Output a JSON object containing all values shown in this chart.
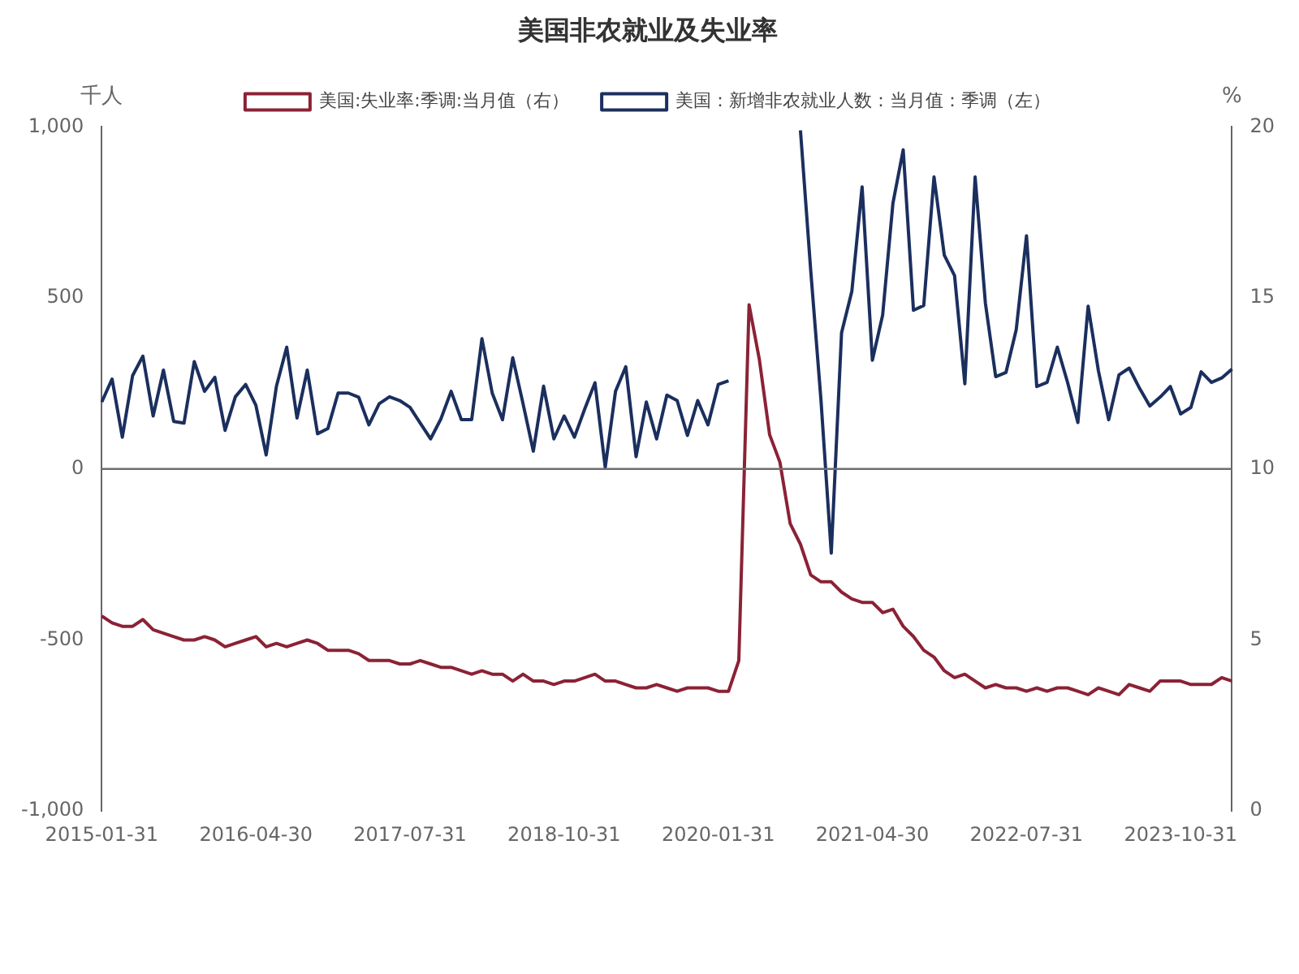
{
  "chart_data": {
    "type": "line",
    "title": "美国非农就业及失业率",
    "ylabel": "千人",
    "y2label": "%",
    "categories": [
      "2015-01-31",
      null,
      null,
      null,
      null,
      null,
      null,
      null,
      null,
      null,
      null,
      null,
      null,
      null,
      null,
      "2016-04-30",
      null,
      null,
      null,
      null,
      null,
      null,
      null,
      null,
      null,
      null,
      null,
      null,
      null,
      null,
      "2017-07-31",
      null,
      null,
      null,
      null,
      null,
      null,
      null,
      null,
      null,
      null,
      null,
      null,
      null,
      null,
      "2018-10-31",
      null,
      null,
      null,
      null,
      null,
      null,
      null,
      null,
      null,
      null,
      null,
      null,
      null,
      null,
      "2020-01-31",
      null,
      null,
      null,
      null,
      null,
      null,
      null,
      null,
      null,
      null,
      null,
      null,
      null,
      null,
      "2021-04-30",
      null,
      null,
      null,
      null,
      null,
      null,
      null,
      null,
      null,
      null,
      null,
      null,
      null,
      null,
      "2022-07-31",
      null,
      null,
      null,
      null,
      null,
      null,
      null,
      null,
      null,
      null,
      null,
      null,
      null,
      null,
      "2023-10-31",
      null,
      null,
      null,
      null,
      null
    ],
    "series": [
      {
        "name": "美国:失业率:季调:当月值（右）",
        "color": "#8b2235",
        "axis": "y2",
        "values": [
          5.7,
          5.5,
          5.4,
          5.4,
          5.6,
          5.3,
          5.2,
          5.1,
          5.0,
          5.0,
          5.1,
          5.0,
          4.8,
          4.9,
          5.0,
          5.1,
          4.8,
          4.9,
          4.8,
          4.9,
          5.0,
          4.9,
          4.7,
          4.7,
          4.7,
          4.6,
          4.4,
          4.4,
          4.4,
          4.3,
          4.3,
          4.4,
          4.3,
          4.2,
          4.2,
          4.1,
          4.0,
          4.1,
          4.0,
          4.0,
          3.8,
          4.0,
          3.8,
          3.8,
          3.7,
          3.8,
          3.8,
          3.9,
          4.0,
          3.8,
          3.8,
          3.7,
          3.6,
          3.6,
          3.7,
          3.6,
          3.5,
          3.6,
          3.6,
          3.6,
          3.5,
          3.5,
          4.4,
          14.8,
          13.2,
          11.0,
          10.2,
          8.4,
          7.8,
          6.9,
          6.7,
          6.7,
          6.4,
          6.2,
          6.1,
          6.1,
          5.8,
          5.9,
          5.4,
          5.1,
          4.7,
          4.5,
          4.1,
          3.9,
          4.0,
          3.8,
          3.6,
          3.7,
          3.6,
          3.6,
          3.5,
          3.6,
          3.5,
          3.6,
          3.6,
          3.5,
          3.4,
          3.6,
          3.5,
          3.4,
          3.7,
          3.6,
          3.5,
          3.8,
          3.8,
          3.8,
          3.7,
          3.7,
          3.7,
          3.9,
          3.8
        ]
      },
      {
        "name": "美国：新增非农就业人数：当月值：季调（左）",
        "color": "#1b2f5e",
        "values": [
          196,
          263,
          93,
          273,
          330,
          155,
          289,
          139,
          134,
          314,
          227,
          268,
          113,
          211,
          247,
          186,
          41,
          242,
          356,
          149,
          289,
          103,
          118,
          222,
          222,
          210,
          129,
          191,
          211,
          200,
          180,
          134,
          88,
          146,
          227,
          144,
          144,
          381,
          222,
          144,
          325,
          191,
          52,
          242,
          88,
          155,
          93,
          175,
          252,
          5,
          227,
          299,
          36,
          196,
          88,
          216,
          200,
          98,
          200,
          129,
          247,
          258,
          null,
          null,
          null,
          null,
          null,
          null,
          990,
          580,
          200,
          -246,
          398,
          519,
          825,
          318,
          450,
          777,
          933,
          464,
          478,
          854,
          625,
          565,
          249,
          854,
          485,
          270,
          282,
          407,
          682,
          241,
          253,
          356,
          253,
          136,
          476,
          287,
          144,
          275,
          295,
          236,
          184,
          210,
          241,
          161,
          180,
          284,
          253,
          266,
          292
        ]
      }
    ],
    "ylim": [
      -1000,
      1000
    ],
    "yticks": [
      {
        "value": -1000,
        "label": "-1,000"
      },
      -500,
      0,
      500,
      {
        "value": 1000,
        "label": "1,000"
      }
    ],
    "y2lim": [
      0,
      20
    ],
    "y2ticks": [
      0,
      5,
      10,
      15,
      20
    ],
    "ref_lines": [
      {
        "axis": "y",
        "value": 0,
        "color": "#6e6e6e"
      }
    ],
    "grid": false,
    "legend": "top",
    "marker": "none",
    "line_style": "solid"
  }
}
